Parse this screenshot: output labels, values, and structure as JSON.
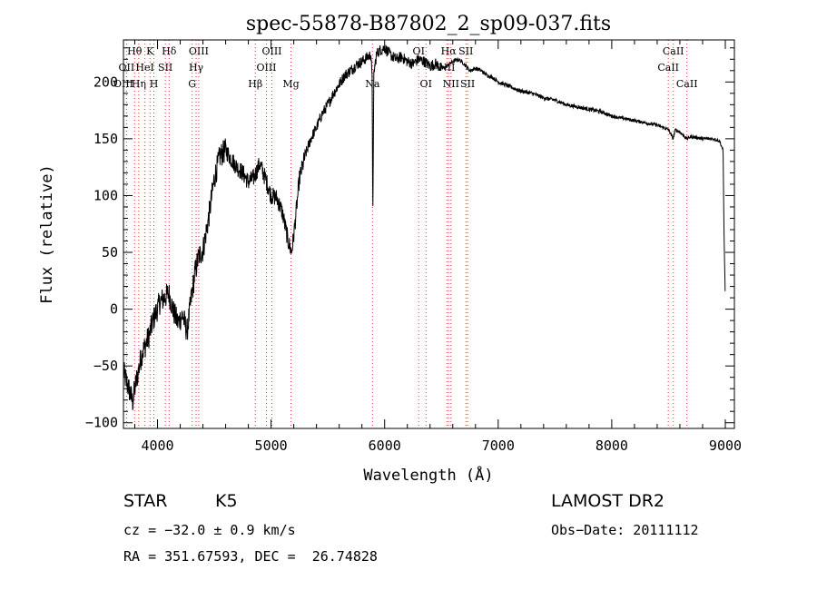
{
  "chart_data": {
    "type": "line",
    "title": "spec-55878-B87802_2_sp09-037.fits",
    "xlabel": "Wavelength (Å)",
    "ylabel": "Flux (relative)",
    "xlim": [
      3700,
      9080
    ],
    "ylim": [
      -105,
      237
    ],
    "x_ticks": [
      4000,
      5000,
      6000,
      7000,
      8000,
      9000
    ],
    "y_ticks": [
      -100,
      -50,
      0,
      50,
      100,
      150,
      200
    ],
    "grid": false,
    "series": [
      {
        "color": "#000000",
        "x": [
          3700,
          3720,
          3740,
          3760,
          3780,
          3800,
          3830,
          3860,
          3900,
          3930,
          3960,
          3990,
          4020,
          4060,
          4100,
          4140,
          4180,
          4220,
          4260,
          4300,
          4330,
          4360,
          4400,
          4450,
          4500,
          4550,
          4600,
          4650,
          4700,
          4750,
          4800,
          4850,
          4900,
          4950,
          5000,
          5050,
          5100,
          5150,
          5180,
          5200,
          5250,
          5300,
          5350,
          5400,
          5450,
          5500,
          5550,
          5600,
          5650,
          5700,
          5750,
          5800,
          5850,
          5880,
          5890,
          5896,
          5905,
          5930,
          5960,
          6000,
          6050,
          6100,
          6150,
          6200,
          6250,
          6300,
          6350,
          6400,
          6450,
          6500,
          6550,
          6600,
          6650,
          6700,
          6750,
          6800,
          6850,
          6900,
          6950,
          7000,
          7050,
          7100,
          7150,
          7200,
          7300,
          7400,
          7500,
          7600,
          7700,
          7800,
          7900,
          8000,
          8100,
          8200,
          8300,
          8400,
          8500,
          8540,
          8560,
          8600,
          8660,
          8700,
          8800,
          8900,
          8950,
          8980,
          8990,
          9000
        ],
        "values": [
          -55,
          -62,
          -68,
          -74,
          -82,
          -70,
          -55,
          -40,
          -30,
          -22,
          -10,
          -2,
          6,
          10,
          14,
          -2,
          -12,
          -5,
          -20,
          12,
          32,
          46,
          52,
          80,
          115,
          135,
          140,
          132,
          125,
          120,
          112,
          116,
          128,
          115,
          100,
          98,
          85,
          60,
          50,
          65,
          115,
          135,
          150,
          160,
          172,
          180,
          190,
          198,
          206,
          210,
          215,
          218,
          222,
          224,
          200,
          80,
          208,
          225,
          228,
          230,
          224,
          220,
          222,
          218,
          216,
          220,
          218,
          214,
          216,
          212,
          214,
          218,
          220,
          216,
          210,
          212,
          210,
          206,
          204,
          200,
          198,
          196,
          194,
          192,
          190,
          186,
          184,
          180,
          178,
          176,
          174,
          170,
          168,
          166,
          164,
          162,
          158,
          150,
          158,
          156,
          150,
          152,
          150,
          150,
          148,
          140,
          60,
          10
        ]
      }
    ],
    "spectral_lines": [
      {
        "label": "Hθ",
        "x": 3798,
        "row": 0
      },
      {
        "label": "K",
        "x": 3934,
        "row": 0
      },
      {
        "label": "Hδ",
        "x": 4102,
        "row": 0
      },
      {
        "label": "OIII",
        "x": 4363,
        "row": 0
      },
      {
        "label": "OIII",
        "x": 5007,
        "row": 0
      },
      {
        "label": "OI",
        "x": 6300,
        "row": 0
      },
      {
        "label": "Hα",
        "x": 6563,
        "row": 0
      },
      {
        "label": "SII",
        "x": 6716,
        "row": 0
      },
      {
        "label": "CaII",
        "x": 8542,
        "row": 0
      },
      {
        "label": "OII",
        "x": 3727,
        "row": 1
      },
      {
        "label": "HeI",
        "x": 3889,
        "row": 1
      },
      {
        "label": "SII",
        "x": 4069,
        "row": 1
      },
      {
        "label": "Hγ",
        "x": 4340,
        "row": 1
      },
      {
        "label": "OIII",
        "x": 4959,
        "row": 1
      },
      {
        "label": "NII",
        "x": 6548,
        "row": 1
      },
      {
        "label": "CaII",
        "x": 8498,
        "row": 1
      },
      {
        "label": "OIII",
        "x": 3700,
        "row": 2
      },
      {
        "label": "Hη",
        "x": 3835,
        "row": 2
      },
      {
        "label": "H",
        "x": 3968,
        "row": 2
      },
      {
        "label": "G",
        "x": 4305,
        "row": 2
      },
      {
        "label": "Hβ",
        "x": 4861,
        "row": 2
      },
      {
        "label": "Mg",
        "x": 5175,
        "row": 2
      },
      {
        "label": "Na",
        "x": 5893,
        "row": 2
      },
      {
        "label": "OI",
        "x": 6364,
        "row": 2
      },
      {
        "label": "NII",
        "x": 6584,
        "row": 2
      },
      {
        "label": "SII",
        "x": 6731,
        "row": 2
      },
      {
        "label": "CaII",
        "x": 8662,
        "row": 2
      }
    ]
  },
  "info": {
    "object_class": "STAR",
    "subclass": "K5",
    "survey": "LAMOST DR2",
    "cz": "cz = −32.0 ± 0.9 km/s",
    "obs_date": "Obs−Date: 20111112",
    "coords": "RA = 351.67593, DEC =  26.74828"
  }
}
